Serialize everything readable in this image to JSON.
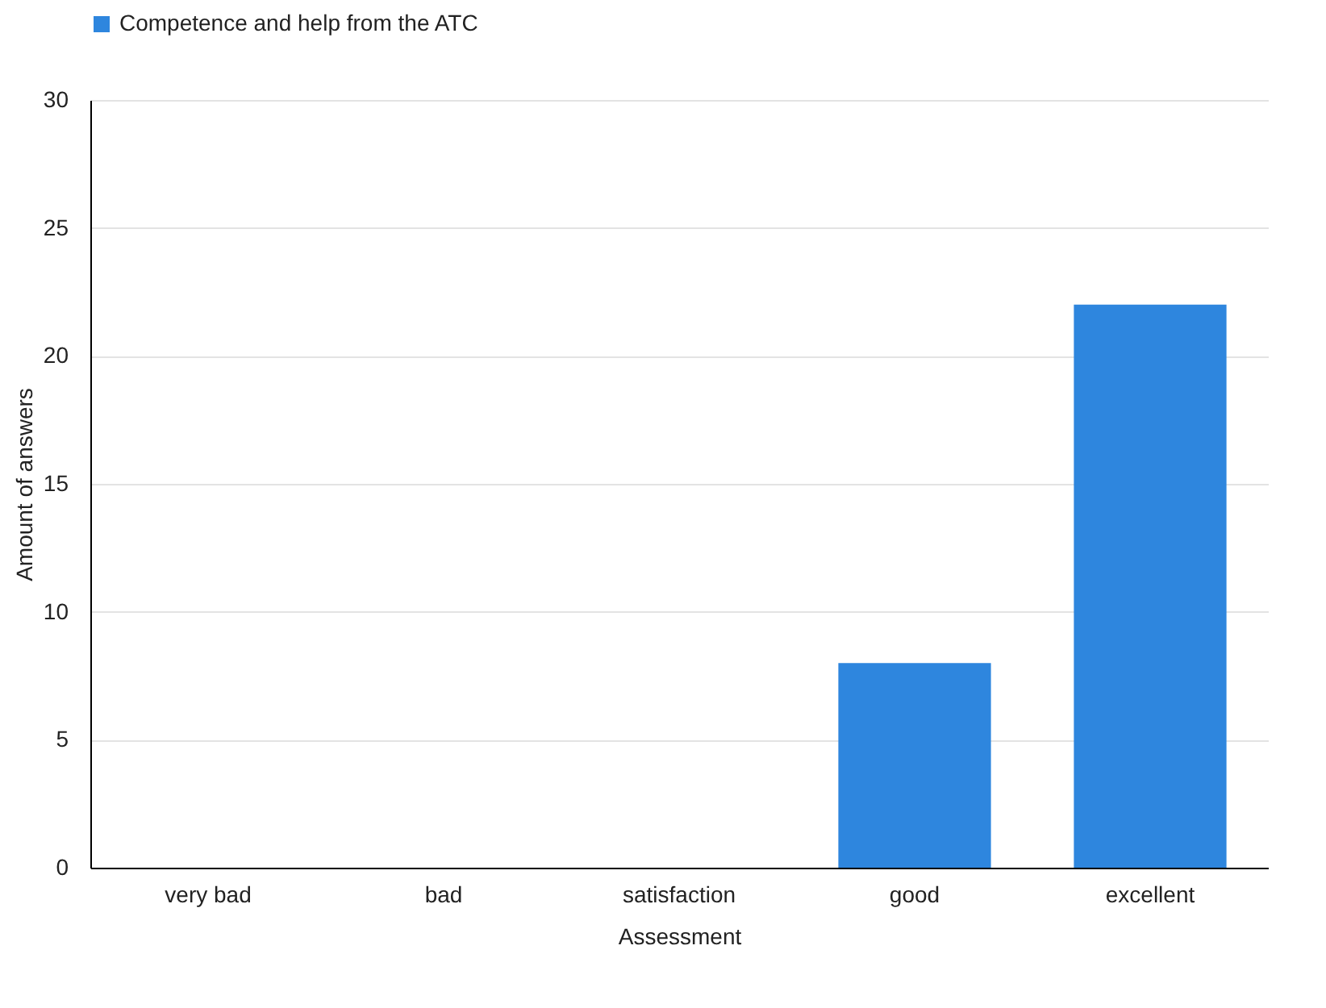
{
  "chart_data": {
    "type": "bar",
    "xlabel": "Assessment",
    "ylabel": "Amount of answers",
    "categories": [
      "very bad",
      "bad",
      "satisfaction",
      "good",
      "excellent"
    ],
    "series": [
      {
        "name": "Competence and help from the ATC",
        "color": "#2e86de",
        "values": [
          0,
          0,
          0,
          8,
          22
        ]
      }
    ],
    "ylim": [
      0,
      30
    ],
    "yticks": [
      0,
      5,
      10,
      15,
      20,
      25,
      30
    ],
    "grid": "y",
    "legend": "top"
  }
}
